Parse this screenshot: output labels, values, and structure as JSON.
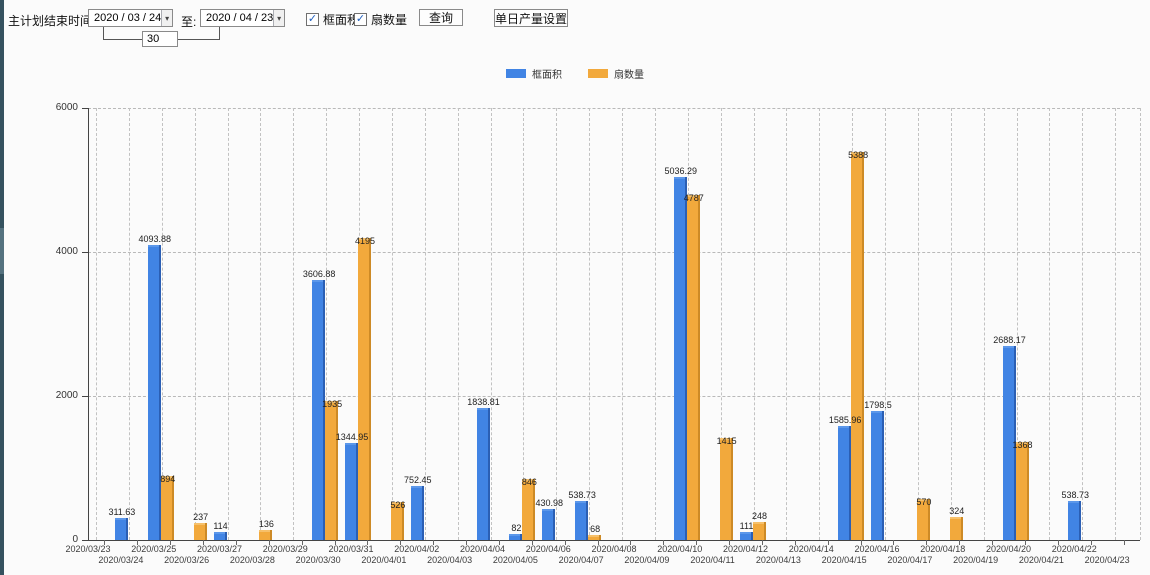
{
  "toolbar": {
    "end_time_label": "主计划结束时间:",
    "date_from": "2020 / 03 / 24",
    "to_label": "至:",
    "date_to": "2020 / 04 / 23",
    "interval_days": "30",
    "checkbox_frame_area_label": "框面积",
    "checkbox_fan_count_label": "扇数量",
    "checkbox_checked_glyph": "✓",
    "dropdown_arrow_glyph": "▾",
    "query_button_label": "查询",
    "daily_output_button_label": "单日产量设置"
  },
  "colors": {
    "frame_area_blue": "#4184e4",
    "fan_count_orange": "#f2a93c",
    "axis_line": "#444444",
    "grid_line": "#c2c2c2",
    "left_edge_strip": "#35525f"
  },
  "chart_data": {
    "type": "bar",
    "title": "",
    "xlabel": "",
    "ylabel": "",
    "ylim": [
      0,
      6000
    ],
    "yticks": [
      0,
      2000,
      4000,
      6000
    ],
    "grid": true,
    "legend_position": "top",
    "categories": [
      "2020/03/23",
      "2020/03/24",
      "2020/03/25",
      "2020/03/26",
      "2020/03/27",
      "2020/03/28",
      "2020/03/29",
      "2020/03/30",
      "2020/03/31",
      "2020/04/01",
      "2020/04/02",
      "2020/04/03",
      "2020/04/04",
      "2020/04/05",
      "2020/04/06",
      "2020/04/07",
      "2020/04/08",
      "2020/04/09",
      "2020/04/10",
      "2020/04/11",
      "2020/04/12",
      "2020/04/13",
      "2020/04/14",
      "2020/04/15",
      "2020/04/16",
      "2020/04/17",
      "2020/04/18",
      "2020/04/19",
      "2020/04/20",
      "2020/04/21",
      "2020/04/22",
      "2020/04/23"
    ],
    "series": [
      {
        "name": "框面积",
        "color": "#4184e4",
        "values": [
          0,
          311.63,
          4093.88,
          0,
          114,
          0,
          0,
          3606.88,
          1344.95,
          0,
          752.45,
          0,
          1838.81,
          82,
          430.98,
          538.73,
          0,
          0,
          5036.29,
          0,
          111,
          0,
          0,
          1585.96,
          1798.5,
          0,
          0,
          0,
          2688.17,
          0,
          538.73,
          0
        ]
      },
      {
        "name": "扇数量",
        "color": "#f2a93c",
        "values": [
          0,
          0,
          894,
          237,
          0,
          136,
          0,
          1935,
          4195,
          526,
          0,
          0,
          0,
          846,
          0,
          68,
          0,
          0,
          4787,
          1415,
          248,
          0,
          0,
          5388,
          0,
          570,
          324,
          0,
          1368,
          0,
          0,
          0
        ]
      }
    ]
  }
}
